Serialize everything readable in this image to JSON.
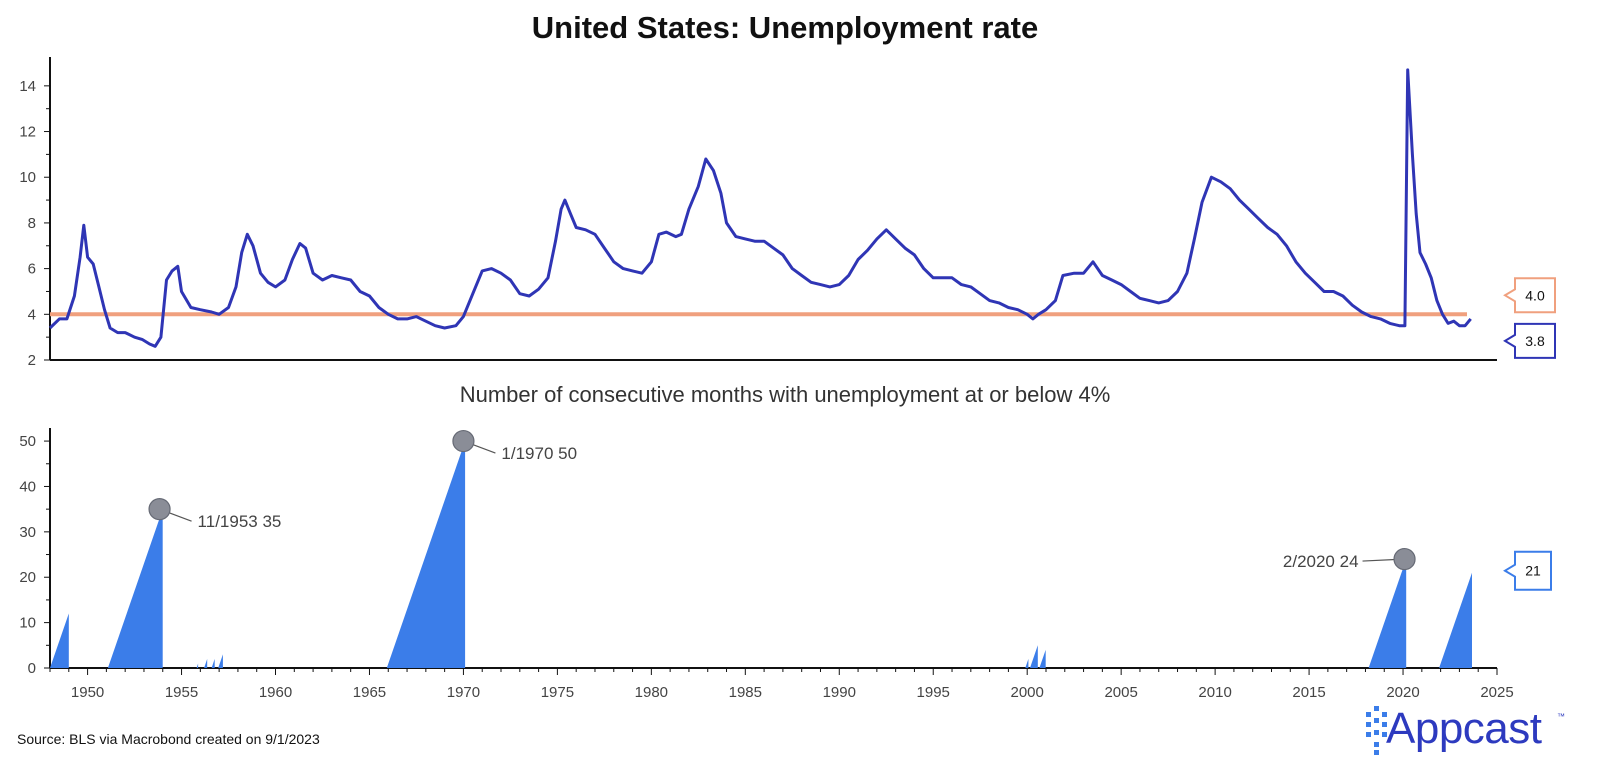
{
  "chart_data": [
    {
      "type": "line",
      "title": "United States: Unemployment rate",
      "xlim": [
        1948,
        2025
      ],
      "ylim": [
        2,
        15
      ],
      "yticks": [
        2,
        4,
        6,
        8,
        10,
        12,
        14
      ],
      "grid": false,
      "reference_line": {
        "value": 4.0,
        "label": "4.0",
        "color": "#f0a07e"
      },
      "last_value_label": "3.8",
      "series": [
        {
          "color": "#2f35b5",
          "points": [
            [
              1948.0,
              3.4
            ],
            [
              1948.5,
              3.8
            ],
            [
              1948.9,
              3.8
            ],
            [
              1949.3,
              4.8
            ],
            [
              1949.6,
              6.5
            ],
            [
              1949.8,
              7.9
            ],
            [
              1950.0,
              6.5
            ],
            [
              1950.3,
              6.2
            ],
            [
              1950.6,
              5.2
            ],
            [
              1950.9,
              4.2
            ],
            [
              1951.2,
              3.4
            ],
            [
              1951.6,
              3.2
            ],
            [
              1952.0,
              3.2
            ],
            [
              1952.5,
              3.0
            ],
            [
              1952.9,
              2.9
            ],
            [
              1953.3,
              2.7
            ],
            [
              1953.6,
              2.6
            ],
            [
              1953.9,
              3.0
            ],
            [
              1954.2,
              5.5
            ],
            [
              1954.5,
              5.9
            ],
            [
              1954.8,
              6.1
            ],
            [
              1955.0,
              5.0
            ],
            [
              1955.5,
              4.3
            ],
            [
              1956.0,
              4.2
            ],
            [
              1956.6,
              4.1
            ],
            [
              1957.0,
              4.0
            ],
            [
              1957.5,
              4.3
            ],
            [
              1957.9,
              5.2
            ],
            [
              1958.2,
              6.7
            ],
            [
              1958.5,
              7.5
            ],
            [
              1958.8,
              7.0
            ],
            [
              1959.2,
              5.8
            ],
            [
              1959.6,
              5.4
            ],
            [
              1960.0,
              5.2
            ],
            [
              1960.5,
              5.5
            ],
            [
              1960.9,
              6.4
            ],
            [
              1961.3,
              7.1
            ],
            [
              1961.6,
              6.9
            ],
            [
              1962.0,
              5.8
            ],
            [
              1962.5,
              5.5
            ],
            [
              1963.0,
              5.7
            ],
            [
              1963.5,
              5.6
            ],
            [
              1964.0,
              5.5
            ],
            [
              1964.5,
              5.0
            ],
            [
              1965.0,
              4.8
            ],
            [
              1965.5,
              4.3
            ],
            [
              1966.0,
              4.0
            ],
            [
              1966.5,
              3.8
            ],
            [
              1967.0,
              3.8
            ],
            [
              1967.5,
              3.9
            ],
            [
              1968.0,
              3.7
            ],
            [
              1968.5,
              3.5
            ],
            [
              1969.0,
              3.4
            ],
            [
              1969.6,
              3.5
            ],
            [
              1970.0,
              3.9
            ],
            [
              1970.5,
              4.9
            ],
            [
              1971.0,
              5.9
            ],
            [
              1971.5,
              6.0
            ],
            [
              1972.0,
              5.8
            ],
            [
              1972.5,
              5.5
            ],
            [
              1973.0,
              4.9
            ],
            [
              1973.5,
              4.8
            ],
            [
              1974.0,
              5.1
            ],
            [
              1974.5,
              5.6
            ],
            [
              1974.9,
              7.2
            ],
            [
              1975.2,
              8.6
            ],
            [
              1975.4,
              9.0
            ],
            [
              1975.7,
              8.4
            ],
            [
              1976.0,
              7.8
            ],
            [
              1976.5,
              7.7
            ],
            [
              1977.0,
              7.5
            ],
            [
              1977.5,
              6.9
            ],
            [
              1978.0,
              6.3
            ],
            [
              1978.5,
              6.0
            ],
            [
              1979.0,
              5.9
            ],
            [
              1979.5,
              5.8
            ],
            [
              1980.0,
              6.3
            ],
            [
              1980.4,
              7.5
            ],
            [
              1980.8,
              7.6
            ],
            [
              1981.3,
              7.4
            ],
            [
              1981.6,
              7.5
            ],
            [
              1982.0,
              8.6
            ],
            [
              1982.5,
              9.6
            ],
            [
              1982.9,
              10.8
            ],
            [
              1983.3,
              10.3
            ],
            [
              1983.7,
              9.3
            ],
            [
              1984.0,
              8.0
            ],
            [
              1984.5,
              7.4
            ],
            [
              1985.0,
              7.3
            ],
            [
              1985.5,
              7.2
            ],
            [
              1986.0,
              7.2
            ],
            [
              1986.5,
              6.9
            ],
            [
              1987.0,
              6.6
            ],
            [
              1987.5,
              6.0
            ],
            [
              1988.0,
              5.7
            ],
            [
              1988.5,
              5.4
            ],
            [
              1989.0,
              5.3
            ],
            [
              1989.5,
              5.2
            ],
            [
              1990.0,
              5.3
            ],
            [
              1990.5,
              5.7
            ],
            [
              1991.0,
              6.4
            ],
            [
              1991.5,
              6.8
            ],
            [
              1992.0,
              7.3
            ],
            [
              1992.5,
              7.7
            ],
            [
              1993.0,
              7.3
            ],
            [
              1993.5,
              6.9
            ],
            [
              1994.0,
              6.6
            ],
            [
              1994.5,
              6.0
            ],
            [
              1995.0,
              5.6
            ],
            [
              1995.5,
              5.6
            ],
            [
              1996.0,
              5.6
            ],
            [
              1996.5,
              5.3
            ],
            [
              1997.0,
              5.2
            ],
            [
              1997.5,
              4.9
            ],
            [
              1998.0,
              4.6
            ],
            [
              1998.5,
              4.5
            ],
            [
              1999.0,
              4.3
            ],
            [
              1999.5,
              4.2
            ],
            [
              2000.0,
              4.0
            ],
            [
              2000.3,
              3.8
            ],
            [
              2000.6,
              4.0
            ],
            [
              2001.0,
              4.2
            ],
            [
              2001.5,
              4.6
            ],
            [
              2001.9,
              5.7
            ],
            [
              2002.5,
              5.8
            ],
            [
              2003.0,
              5.8
            ],
            [
              2003.5,
              6.3
            ],
            [
              2004.0,
              5.7
            ],
            [
              2004.5,
              5.5
            ],
            [
              2005.0,
              5.3
            ],
            [
              2005.5,
              5.0
            ],
            [
              2006.0,
              4.7
            ],
            [
              2006.5,
              4.6
            ],
            [
              2007.0,
              4.5
            ],
            [
              2007.5,
              4.6
            ],
            [
              2008.0,
              5.0
            ],
            [
              2008.5,
              5.8
            ],
            [
              2008.9,
              7.3
            ],
            [
              2009.3,
              8.9
            ],
            [
              2009.8,
              10.0
            ],
            [
              2010.3,
              9.8
            ],
            [
              2010.8,
              9.5
            ],
            [
              2011.3,
              9.0
            ],
            [
              2011.8,
              8.6
            ],
            [
              2012.3,
              8.2
            ],
            [
              2012.8,
              7.8
            ],
            [
              2013.3,
              7.5
            ],
            [
              2013.8,
              7.0
            ],
            [
              2014.3,
              6.3
            ],
            [
              2014.8,
              5.8
            ],
            [
              2015.3,
              5.4
            ],
            [
              2015.8,
              5.0
            ],
            [
              2016.3,
              5.0
            ],
            [
              2016.8,
              4.8
            ],
            [
              2017.3,
              4.4
            ],
            [
              2017.8,
              4.1
            ],
            [
              2018.3,
              3.9
            ],
            [
              2018.8,
              3.8
            ],
            [
              2019.3,
              3.6
            ],
            [
              2019.8,
              3.5
            ],
            [
              2020.1,
              3.5
            ],
            [
              2020.25,
              14.7
            ],
            [
              2020.5,
              11.0
            ],
            [
              2020.7,
              8.4
            ],
            [
              2020.9,
              6.7
            ],
            [
              2021.2,
              6.2
            ],
            [
              2021.5,
              5.6
            ],
            [
              2021.8,
              4.6
            ],
            [
              2022.1,
              4.0
            ],
            [
              2022.4,
              3.6
            ],
            [
              2022.7,
              3.7
            ],
            [
              2023.0,
              3.5
            ],
            [
              2023.3,
              3.5
            ],
            [
              2023.6,
              3.8
            ]
          ]
        }
      ]
    },
    {
      "type": "area",
      "title": "Number of consecutive months with unemployment at or below 4%",
      "xlim": [
        1948,
        2025
      ],
      "ylim": [
        0,
        52
      ],
      "yticks": [
        0,
        10,
        20,
        30,
        40,
        50
      ],
      "xticks": [
        1950,
        1955,
        1960,
        1965,
        1970,
        1975,
        1980,
        1985,
        1990,
        1995,
        2000,
        2005,
        2010,
        2015,
        2020,
        2025
      ],
      "grid": false,
      "last_value_label": "21",
      "series": [
        {
          "color": "#3b7de9",
          "runs": [
            {
              "start": 1948.0,
              "months": 12
            },
            {
              "start": 1951.08,
              "months": 35
            },
            {
              "start": 1955.8,
              "months": 1
            },
            {
              "start": 1956.2,
              "months": 2
            },
            {
              "start": 1956.6,
              "months": 2
            },
            {
              "start": 1956.95,
              "months": 3
            },
            {
              "start": 1965.92,
              "months": 50
            },
            {
              "start": 1999.9,
              "months": 2
            },
            {
              "start": 2000.15,
              "months": 5
            },
            {
              "start": 2000.65,
              "months": 4
            },
            {
              "start": 2018.17,
              "months": 24
            },
            {
              "start": 2021.92,
              "months": 21
            }
          ]
        }
      ],
      "annotations": [
        {
          "x": 1953.83,
          "y": 35,
          "label": "11/1953 35"
        },
        {
          "x": 1970.0,
          "y": 50,
          "label": "1/1970 50"
        },
        {
          "x": 2020.08,
          "y": 24,
          "label": "2/2020 24"
        }
      ]
    }
  ],
  "source": "Source: BLS via Macrobond created on 9/1/2023",
  "logo": {
    "text": "Appcast",
    "mark": "™",
    "color": "#2d3abf"
  }
}
